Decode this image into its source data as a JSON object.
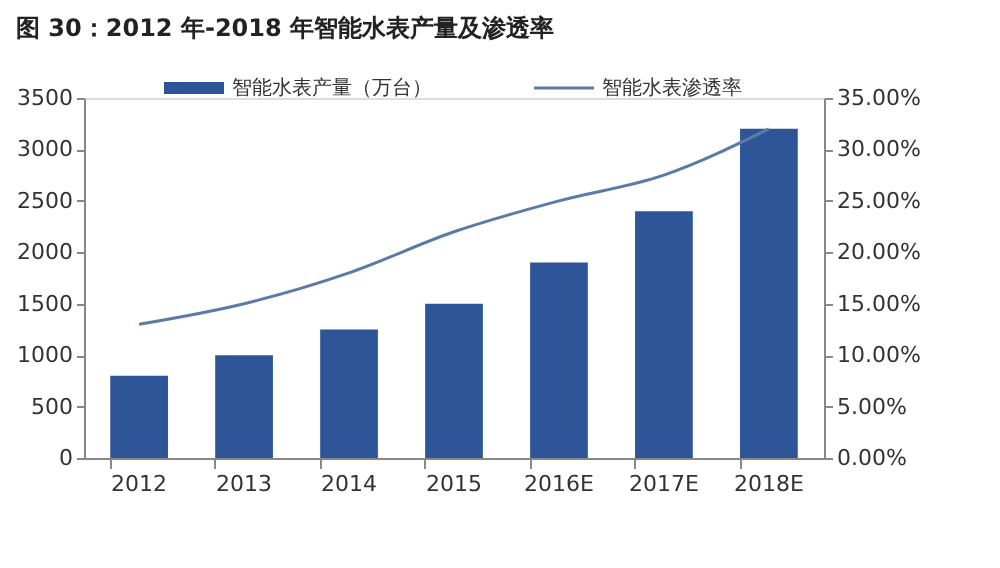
{
  "chart_data": {
    "type": "bar",
    "title": "图 30：2012 年-2018 年智能水表产量及渗透率",
    "categories": [
      "2012",
      "2013",
      "2014",
      "2015",
      "2016E",
      "2017E",
      "2018E"
    ],
    "series": [
      {
        "name": "智能水表产量（万台）",
        "color": "#2e5597",
        "values": [
          800,
          1000,
          1250,
          1500,
          1900,
          2400,
          3200
        ]
      },
      {
        "name": "智能水表渗透率",
        "type": "line",
        "axis": "y2",
        "color": "#5b7ba6",
        "values": [
          13,
          15,
          18,
          22,
          25,
          27.5,
          32
        ]
      }
    ],
    "ylim": [
      0,
      3500
    ],
    "yticks": [
      0,
      500,
      1000,
      1500,
      2000,
      2500,
      3000,
      3500
    ],
    "y2lim": [
      0,
      35
    ],
    "y2ticks": [
      {
        "value": 0,
        "label": "0.00%"
      },
      {
        "value": 5,
        "label": "5.00%"
      },
      {
        "value": 10,
        "label": "10.00%"
      },
      {
        "value": 15,
        "label": "15.00%"
      },
      {
        "value": 20,
        "label": "20.00%"
      },
      {
        "value": 25,
        "label": "25.00%"
      },
      {
        "value": 30,
        "label": "30.00%"
      },
      {
        "value": 35,
        "label": "35.00%"
      }
    ],
    "grid": false,
    "legend": "top"
  }
}
